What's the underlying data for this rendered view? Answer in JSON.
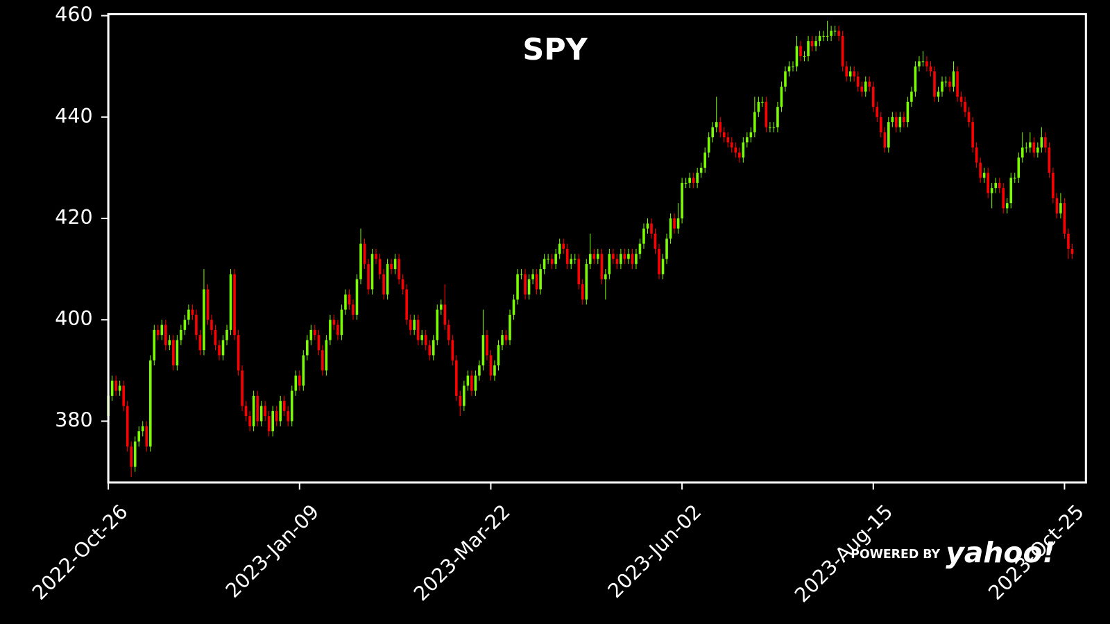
{
  "chart_data": {
    "type": "candlestick",
    "title": "SPY",
    "up_color": "#7cfc00",
    "down_color": "#ff0000",
    "xlim": [
      0,
      255.6
    ],
    "ylim": [
      367.9,
      460.3
    ],
    "xticks": [
      {
        "value": 0,
        "label": "2022-Oct-26"
      },
      {
        "value": 50,
        "label": "2023-Jan-09"
      },
      {
        "value": 100,
        "label": "2023-Mar-22"
      },
      {
        "value": 150,
        "label": "2023-Jun-02"
      },
      {
        "value": 200,
        "label": "2023-Aug-15"
      },
      {
        "value": 250,
        "label": "2023-Oct-25"
      }
    ],
    "yticks": [
      380,
      400,
      420,
      440,
      460
    ],
    "watermark": {
      "prefix": "POWERED BY",
      "brand": "yahoo!"
    },
    "open": [
      381,
      385,
      388,
      386,
      387,
      383,
      375,
      371,
      376,
      378,
      379,
      375,
      392,
      398,
      397,
      399,
      395,
      396,
      391,
      396,
      398,
      400,
      402,
      401,
      397,
      394,
      406,
      400,
      398,
      395,
      393,
      396,
      398,
      409,
      397,
      390,
      383,
      381,
      379,
      385,
      380,
      383,
      381,
      378,
      382,
      380,
      384,
      382,
      380,
      386,
      389,
      387,
      393,
      396,
      398,
      397,
      394,
      390,
      396,
      400,
      399,
      397,
      402,
      405,
      403,
      401,
      408,
      415,
      411,
      406,
      413,
      412,
      409,
      405,
      411,
      410,
      412,
      408,
      406,
      400,
      398,
      400,
      396,
      397,
      395,
      393,
      396,
      402,
      403,
      399,
      396,
      392,
      385,
      383,
      387,
      389,
      386,
      389,
      391,
      397,
      393,
      389,
      391,
      395,
      397,
      396,
      401,
      404,
      409,
      409,
      405,
      408,
      409,
      406,
      410,
      412,
      412,
      411,
      413,
      415,
      414,
      411,
      412,
      412,
      407,
      404,
      411,
      413,
      412,
      413,
      408,
      409,
      413,
      412,
      411,
      413,
      412,
      413,
      411,
      413,
      415,
      418,
      419,
      417,
      414,
      409,
      412,
      416,
      420,
      418,
      420,
      427,
      427,
      428,
      427,
      429,
      430,
      433,
      436,
      438,
      439,
      437,
      436,
      435,
      434,
      433,
      432,
      435,
      436,
      437,
      441,
      443,
      443,
      438,
      438,
      438,
      442,
      446,
      449,
      450,
      450,
      454,
      452,
      452,
      455,
      454,
      455,
      456,
      456,
      456,
      457,
      457,
      456,
      450,
      448,
      449,
      448,
      446,
      445,
      447,
      446,
      442,
      440,
      437,
      434,
      439,
      440,
      438,
      440,
      439,
      443,
      445,
      450,
      451,
      451,
      450,
      449,
      444,
      445,
      447,
      447,
      446,
      449,
      444,
      443,
      441,
      439,
      434,
      431,
      428,
      429,
      425,
      426,
      427,
      426,
      422,
      423,
      428,
      428,
      432,
      434,
      434,
      435,
      433,
      434,
      436,
      434,
      429,
      424,
      421,
      423,
      417,
      414
    ],
    "high": [
      386,
      389,
      389,
      388,
      388,
      384,
      376,
      377,
      379,
      380,
      380,
      393,
      399,
      399,
      400,
      400,
      397,
      397,
      397,
      399,
      401,
      403,
      403,
      402,
      398,
      410,
      407,
      401,
      399,
      396,
      397,
      399,
      410,
      410,
      398,
      391,
      384,
      382,
      386,
      386,
      384,
      384,
      382,
      383,
      383,
      385,
      385,
      383,
      387,
      390,
      390,
      394,
      397,
      399,
      399,
      398,
      395,
      397,
      401,
      401,
      400,
      403,
      406,
      406,
      404,
      409,
      418,
      416,
      412,
      414,
      414,
      413,
      410,
      412,
      412,
      413,
      413,
      409,
      407,
      401,
      401,
      401,
      398,
      398,
      396,
      397,
      403,
      404,
      407,
      400,
      397,
      393,
      386,
      388,
      390,
      390,
      390,
      392,
      402,
      398,
      394,
      392,
      396,
      398,
      398,
      402,
      405,
      410,
      410,
      410,
      409,
      410,
      410,
      411,
      413,
      413,
      413,
      414,
      416,
      416,
      415,
      413,
      413,
      413,
      408,
      412,
      417,
      414,
      414,
      414,
      410,
      414,
      414,
      413,
      414,
      414,
      414,
      414,
      414,
      416,
      419,
      420,
      420,
      418,
      415,
      413,
      417,
      421,
      421,
      423,
      428,
      428,
      429,
      429,
      430,
      431,
      434,
      437,
      439,
      444,
      440,
      438,
      437,
      436,
      435,
      434,
      436,
      437,
      438,
      444,
      444,
      444,
      444,
      439,
      439,
      443,
      447,
      450,
      451,
      451,
      456,
      455,
      453,
      456,
      456,
      456,
      457,
      457,
      459,
      458,
      458,
      458,
      457,
      451,
      450,
      450,
      449,
      447,
      448,
      448,
      447,
      443,
      441,
      438,
      440,
      441,
      441,
      441,
      441,
      444,
      446,
      451,
      452,
      453,
      452,
      451,
      450,
      446,
      448,
      448,
      448,
      451,
      450,
      445,
      444,
      442,
      440,
      435,
      432,
      430,
      430,
      427,
      428,
      428,
      427,
      424,
      429,
      429,
      433,
      437,
      435,
      437,
      436,
      435,
      438,
      437,
      435,
      430,
      425,
      425,
      424,
      418,
      415
    ],
    "low": [
      380,
      384,
      385,
      385,
      382,
      374,
      369,
      370,
      375,
      377,
      374,
      374,
      391,
      396,
      396,
      394,
      394,
      390,
      390,
      395,
      397,
      399,
      400,
      396,
      393,
      393,
      399,
      397,
      394,
      392,
      392,
      395,
      397,
      396,
      389,
      382,
      380,
      378,
      378,
      379,
      379,
      380,
      377,
      377,
      379,
      379,
      381,
      379,
      379,
      385,
      386,
      386,
      392,
      395,
      396,
      393,
      389,
      389,
      395,
      398,
      396,
      396,
      401,
      402,
      400,
      400,
      407,
      410,
      405,
      405,
      411,
      408,
      404,
      404,
      409,
      409,
      407,
      405,
      399,
      397,
      397,
      395,
      395,
      394,
      392,
      392,
      395,
      401,
      398,
      395,
      391,
      384,
      381,
      382,
      386,
      385,
      385,
      388,
      390,
      392,
      388,
      388,
      390,
      394,
      395,
      395,
      400,
      403,
      408,
      404,
      404,
      407,
      405,
      405,
      409,
      411,
      410,
      410,
      412,
      413,
      410,
      410,
      411,
      406,
      403,
      403,
      410,
      411,
      411,
      407,
      404,
      408,
      411,
      410,
      410,
      411,
      411,
      410,
      410,
      412,
      414,
      417,
      416,
      413,
      408,
      408,
      411,
      415,
      417,
      417,
      419,
      426,
      426,
      426,
      426,
      428,
      429,
      432,
      435,
      437,
      436,
      435,
      434,
      433,
      432,
      431,
      431,
      434,
      435,
      436,
      440,
      442,
      437,
      437,
      437,
      437,
      441,
      445,
      448,
      449,
      449,
      451,
      451,
      451,
      453,
      453,
      454,
      455,
      455,
      455,
      456,
      455,
      449,
      447,
      447,
      447,
      445,
      444,
      444,
      445,
      441,
      439,
      436,
      433,
      433,
      438,
      437,
      437,
      438,
      438,
      442,
      444,
      449,
      450,
      449,
      448,
      443,
      443,
      444,
      446,
      445,
      445,
      443,
      442,
      440,
      438,
      433,
      430,
      427,
      427,
      424,
      422,
      425,
      425,
      421,
      421,
      422,
      427,
      427,
      431,
      433,
      433,
      432,
      432,
      433,
      433,
      428,
      423,
      420,
      420,
      416,
      412,
      412
    ],
    "close": [
      385,
      388,
      386,
      387,
      383,
      375,
      371,
      376,
      378,
      379,
      375,
      392,
      398,
      397,
      399,
      395,
      396,
      391,
      396,
      398,
      400,
      402,
      401,
      397,
      394,
      406,
      400,
      398,
      395,
      393,
      396,
      398,
      409,
      397,
      390,
      383,
      381,
      379,
      385,
      380,
      383,
      381,
      378,
      382,
      380,
      384,
      382,
      380,
      386,
      389,
      387,
      393,
      396,
      398,
      397,
      394,
      390,
      396,
      400,
      399,
      397,
      402,
      405,
      403,
      401,
      408,
      415,
      411,
      406,
      413,
      412,
      409,
      405,
      411,
      410,
      412,
      408,
      406,
      400,
      398,
      400,
      396,
      397,
      395,
      393,
      396,
      402,
      403,
      399,
      396,
      392,
      385,
      383,
      387,
      389,
      386,
      389,
      391,
      397,
      393,
      389,
      391,
      395,
      397,
      396,
      401,
      404,
      409,
      409,
      405,
      408,
      409,
      406,
      410,
      412,
      412,
      411,
      413,
      415,
      414,
      411,
      412,
      412,
      407,
      404,
      411,
      413,
      412,
      413,
      408,
      409,
      413,
      412,
      411,
      413,
      412,
      413,
      411,
      413,
      415,
      418,
      419,
      417,
      414,
      409,
      412,
      416,
      420,
      418,
      420,
      427,
      427,
      428,
      427,
      429,
      430,
      433,
      436,
      438,
      439,
      437,
      436,
      435,
      434,
      433,
      432,
      435,
      436,
      437,
      441,
      443,
      443,
      438,
      438,
      438,
      442,
      446,
      449,
      450,
      450,
      454,
      452,
      452,
      455,
      454,
      455,
      456,
      456,
      456,
      457,
      457,
      456,
      450,
      448,
      449,
      448,
      446,
      445,
      447,
      446,
      442,
      440,
      437,
      434,
      439,
      440,
      438,
      440,
      439,
      443,
      445,
      450,
      451,
      451,
      450,
      449,
      444,
      445,
      447,
      447,
      446,
      449,
      444,
      443,
      441,
      439,
      434,
      431,
      428,
      429,
      425,
      426,
      427,
      426,
      422,
      423,
      428,
      428,
      432,
      434,
      434,
      435,
      433,
      434,
      436,
      434,
      429,
      424,
      421,
      423,
      417,
      414,
      413
    ]
  }
}
